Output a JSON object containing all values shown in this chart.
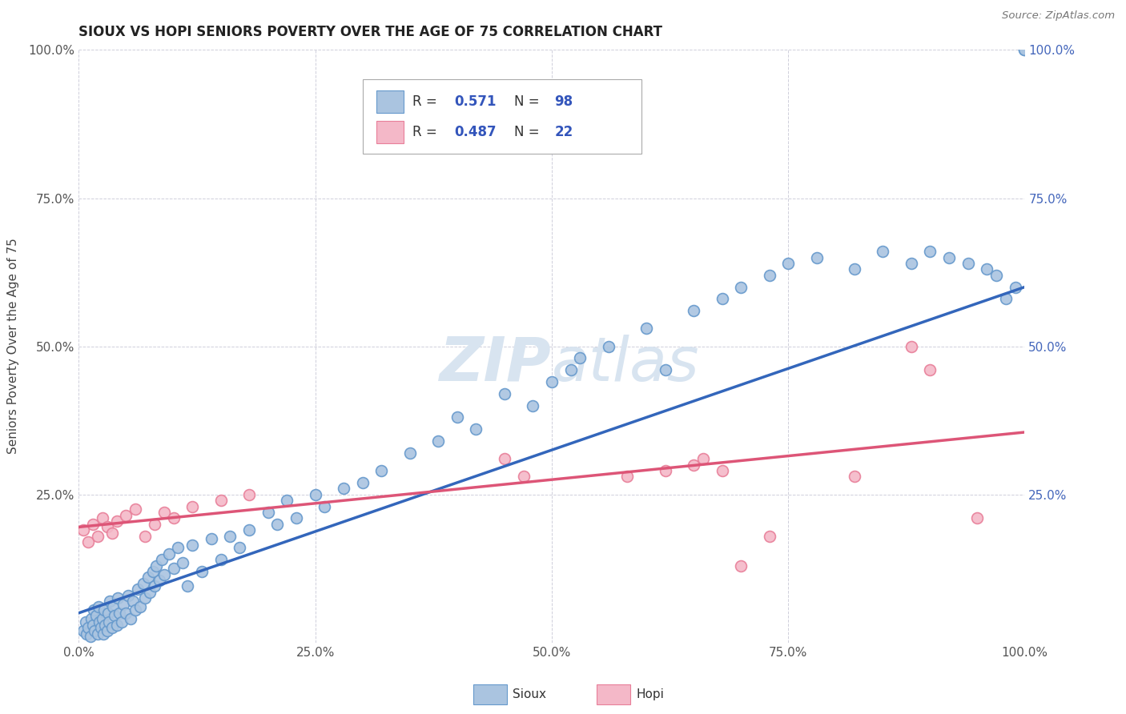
{
  "title": "SIOUX VS HOPI SENIORS POVERTY OVER THE AGE OF 75 CORRELATION CHART",
  "source": "Source: ZipAtlas.com",
  "ylabel": "Seniors Poverty Over the Age of 75",
  "xlim": [
    0.0,
    1.0
  ],
  "ylim": [
    0.0,
    1.0
  ],
  "sioux_color": "#aac4e0",
  "sioux_edge_color": "#6699cc",
  "hopi_color": "#f4b8c8",
  "hopi_edge_color": "#e87f99",
  "trend_sioux_color": "#3366bb",
  "trend_hopi_color": "#dd5577",
  "legend_value_color": "#3355bb",
  "watermark_color": "#d8e4f0",
  "sioux_x": [
    0.005,
    0.007,
    0.008,
    0.01,
    0.012,
    0.013,
    0.015,
    0.016,
    0.017,
    0.018,
    0.02,
    0.021,
    0.022,
    0.023,
    0.025,
    0.026,
    0.027,
    0.028,
    0.03,
    0.031,
    0.032,
    0.033,
    0.035,
    0.036,
    0.038,
    0.04,
    0.041,
    0.043,
    0.045,
    0.047,
    0.05,
    0.052,
    0.055,
    0.057,
    0.06,
    0.062,
    0.065,
    0.068,
    0.07,
    0.073,
    0.075,
    0.078,
    0.08,
    0.082,
    0.085,
    0.088,
    0.09,
    0.095,
    0.1,
    0.105,
    0.11,
    0.115,
    0.12,
    0.13,
    0.14,
    0.15,
    0.16,
    0.17,
    0.18,
    0.2,
    0.21,
    0.22,
    0.23,
    0.25,
    0.26,
    0.28,
    0.3,
    0.32,
    0.35,
    0.38,
    0.4,
    0.42,
    0.45,
    0.48,
    0.5,
    0.52,
    0.53,
    0.56,
    0.6,
    0.62,
    0.65,
    0.68,
    0.7,
    0.73,
    0.75,
    0.78,
    0.82,
    0.85,
    0.88,
    0.9,
    0.92,
    0.94,
    0.96,
    0.97,
    0.98,
    0.99,
    1.0,
    1.0
  ],
  "sioux_y": [
    0.02,
    0.035,
    0.015,
    0.025,
    0.01,
    0.04,
    0.03,
    0.055,
    0.02,
    0.045,
    0.015,
    0.06,
    0.035,
    0.025,
    0.04,
    0.015,
    0.055,
    0.03,
    0.02,
    0.05,
    0.035,
    0.07,
    0.025,
    0.06,
    0.045,
    0.03,
    0.075,
    0.05,
    0.035,
    0.065,
    0.05,
    0.08,
    0.04,
    0.07,
    0.055,
    0.09,
    0.06,
    0.1,
    0.075,
    0.11,
    0.085,
    0.12,
    0.095,
    0.13,
    0.105,
    0.14,
    0.115,
    0.15,
    0.125,
    0.16,
    0.135,
    0.095,
    0.165,
    0.12,
    0.175,
    0.14,
    0.18,
    0.16,
    0.19,
    0.22,
    0.2,
    0.24,
    0.21,
    0.25,
    0.23,
    0.26,
    0.27,
    0.29,
    0.32,
    0.34,
    0.38,
    0.36,
    0.42,
    0.4,
    0.44,
    0.46,
    0.48,
    0.5,
    0.53,
    0.46,
    0.56,
    0.58,
    0.6,
    0.62,
    0.64,
    0.65,
    0.63,
    0.66,
    0.64,
    0.66,
    0.65,
    0.64,
    0.63,
    0.62,
    0.58,
    0.6,
    1.0,
    1.0
  ],
  "hopi_x": [
    0.005,
    0.01,
    0.015,
    0.02,
    0.025,
    0.03,
    0.035,
    0.04,
    0.05,
    0.06,
    0.07,
    0.08,
    0.09,
    0.1,
    0.12,
    0.15,
    0.18,
    0.45,
    0.47,
    0.58,
    0.62,
    0.65,
    0.66,
    0.68,
    0.7,
    0.73,
    0.82,
    0.88,
    0.9,
    0.95
  ],
  "hopi_y": [
    0.19,
    0.17,
    0.2,
    0.18,
    0.21,
    0.195,
    0.185,
    0.205,
    0.215,
    0.225,
    0.18,
    0.2,
    0.22,
    0.21,
    0.23,
    0.24,
    0.25,
    0.31,
    0.28,
    0.28,
    0.29,
    0.3,
    0.31,
    0.29,
    0.13,
    0.18,
    0.28,
    0.5,
    0.46,
    0.21
  ],
  "trend_sioux_x0": 0.0,
  "trend_sioux_y0": 0.05,
  "trend_sioux_x1": 1.0,
  "trend_sioux_y1": 0.6,
  "trend_hopi_x0": 0.0,
  "trend_hopi_y0": 0.195,
  "trend_hopi_x1": 1.0,
  "trend_hopi_y1": 0.355
}
